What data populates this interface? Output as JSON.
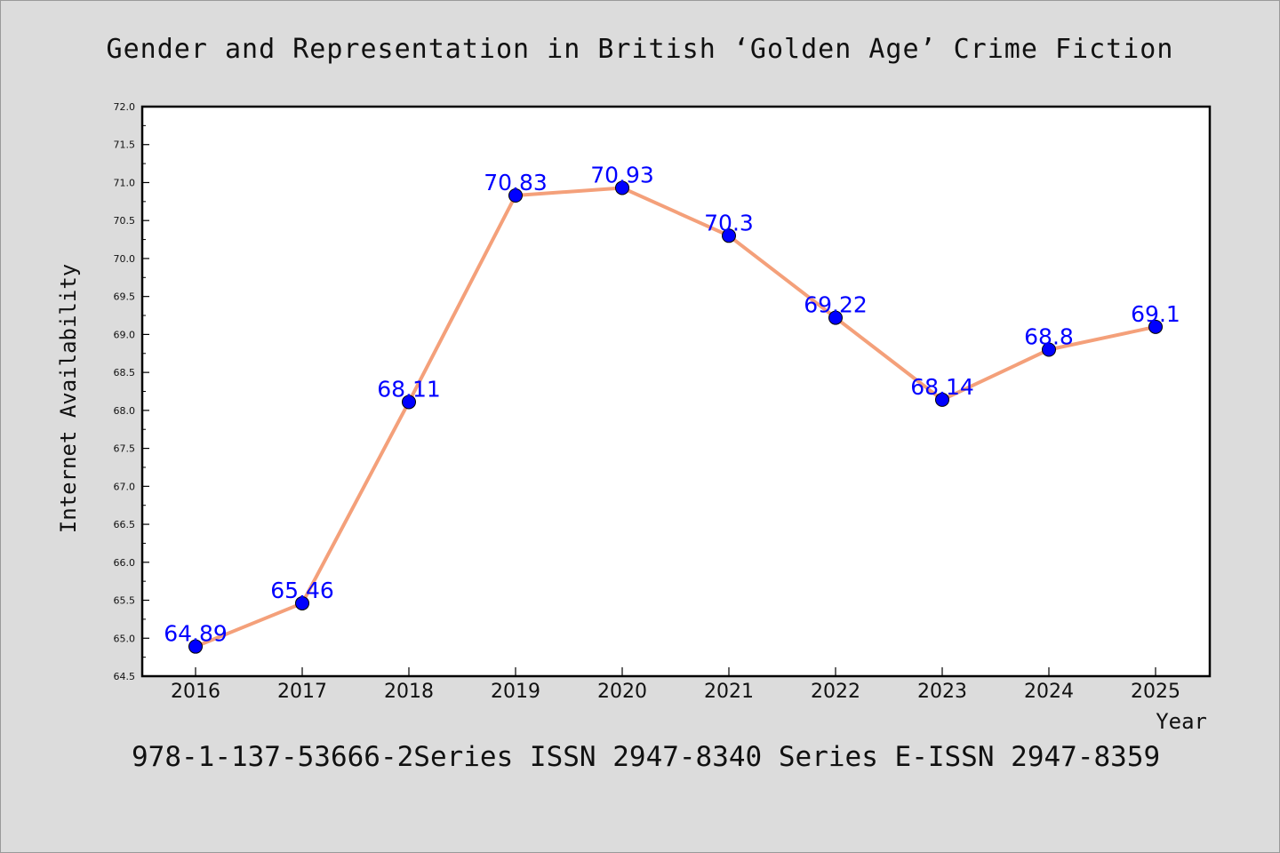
{
  "chart_data": {
    "type": "line",
    "title": "Gender and Representation in British ‘Golden Age’ Crime Fiction",
    "xlabel": "Year",
    "ylabel": "Internet Availability",
    "x": [
      "2016",
      "2017",
      "2018",
      "2019",
      "2020",
      "2021",
      "2022",
      "2023",
      "2024",
      "2025"
    ],
    "values": [
      64.89,
      65.46,
      68.11,
      70.83,
      70.93,
      70.3,
      69.22,
      68.14,
      68.8,
      69.1
    ],
    "data_labels": [
      "64.89",
      "65.46",
      "68.11",
      "70.83",
      "70.93",
      "70.3",
      "69.22",
      "68.14",
      "68.8",
      "69.1"
    ],
    "ylim": [
      64.5,
      72.0
    ],
    "yticks": [
      "64.5",
      "65.0",
      "65.5",
      "66.0",
      "66.5",
      "67.0",
      "67.5",
      "68.0",
      "68.5",
      "69.0",
      "69.5",
      "70.0",
      "70.5",
      "71.0",
      "71.5",
      "72.0"
    ],
    "grid": false,
    "legend": "none",
    "line_color": "#f4a07a",
    "marker_color": "#0000ff",
    "label_color": "#0000ff"
  },
  "footer": "978-1-137-53666-2Series ISSN 2947-8340 Series E-ISSN 2947-8359"
}
